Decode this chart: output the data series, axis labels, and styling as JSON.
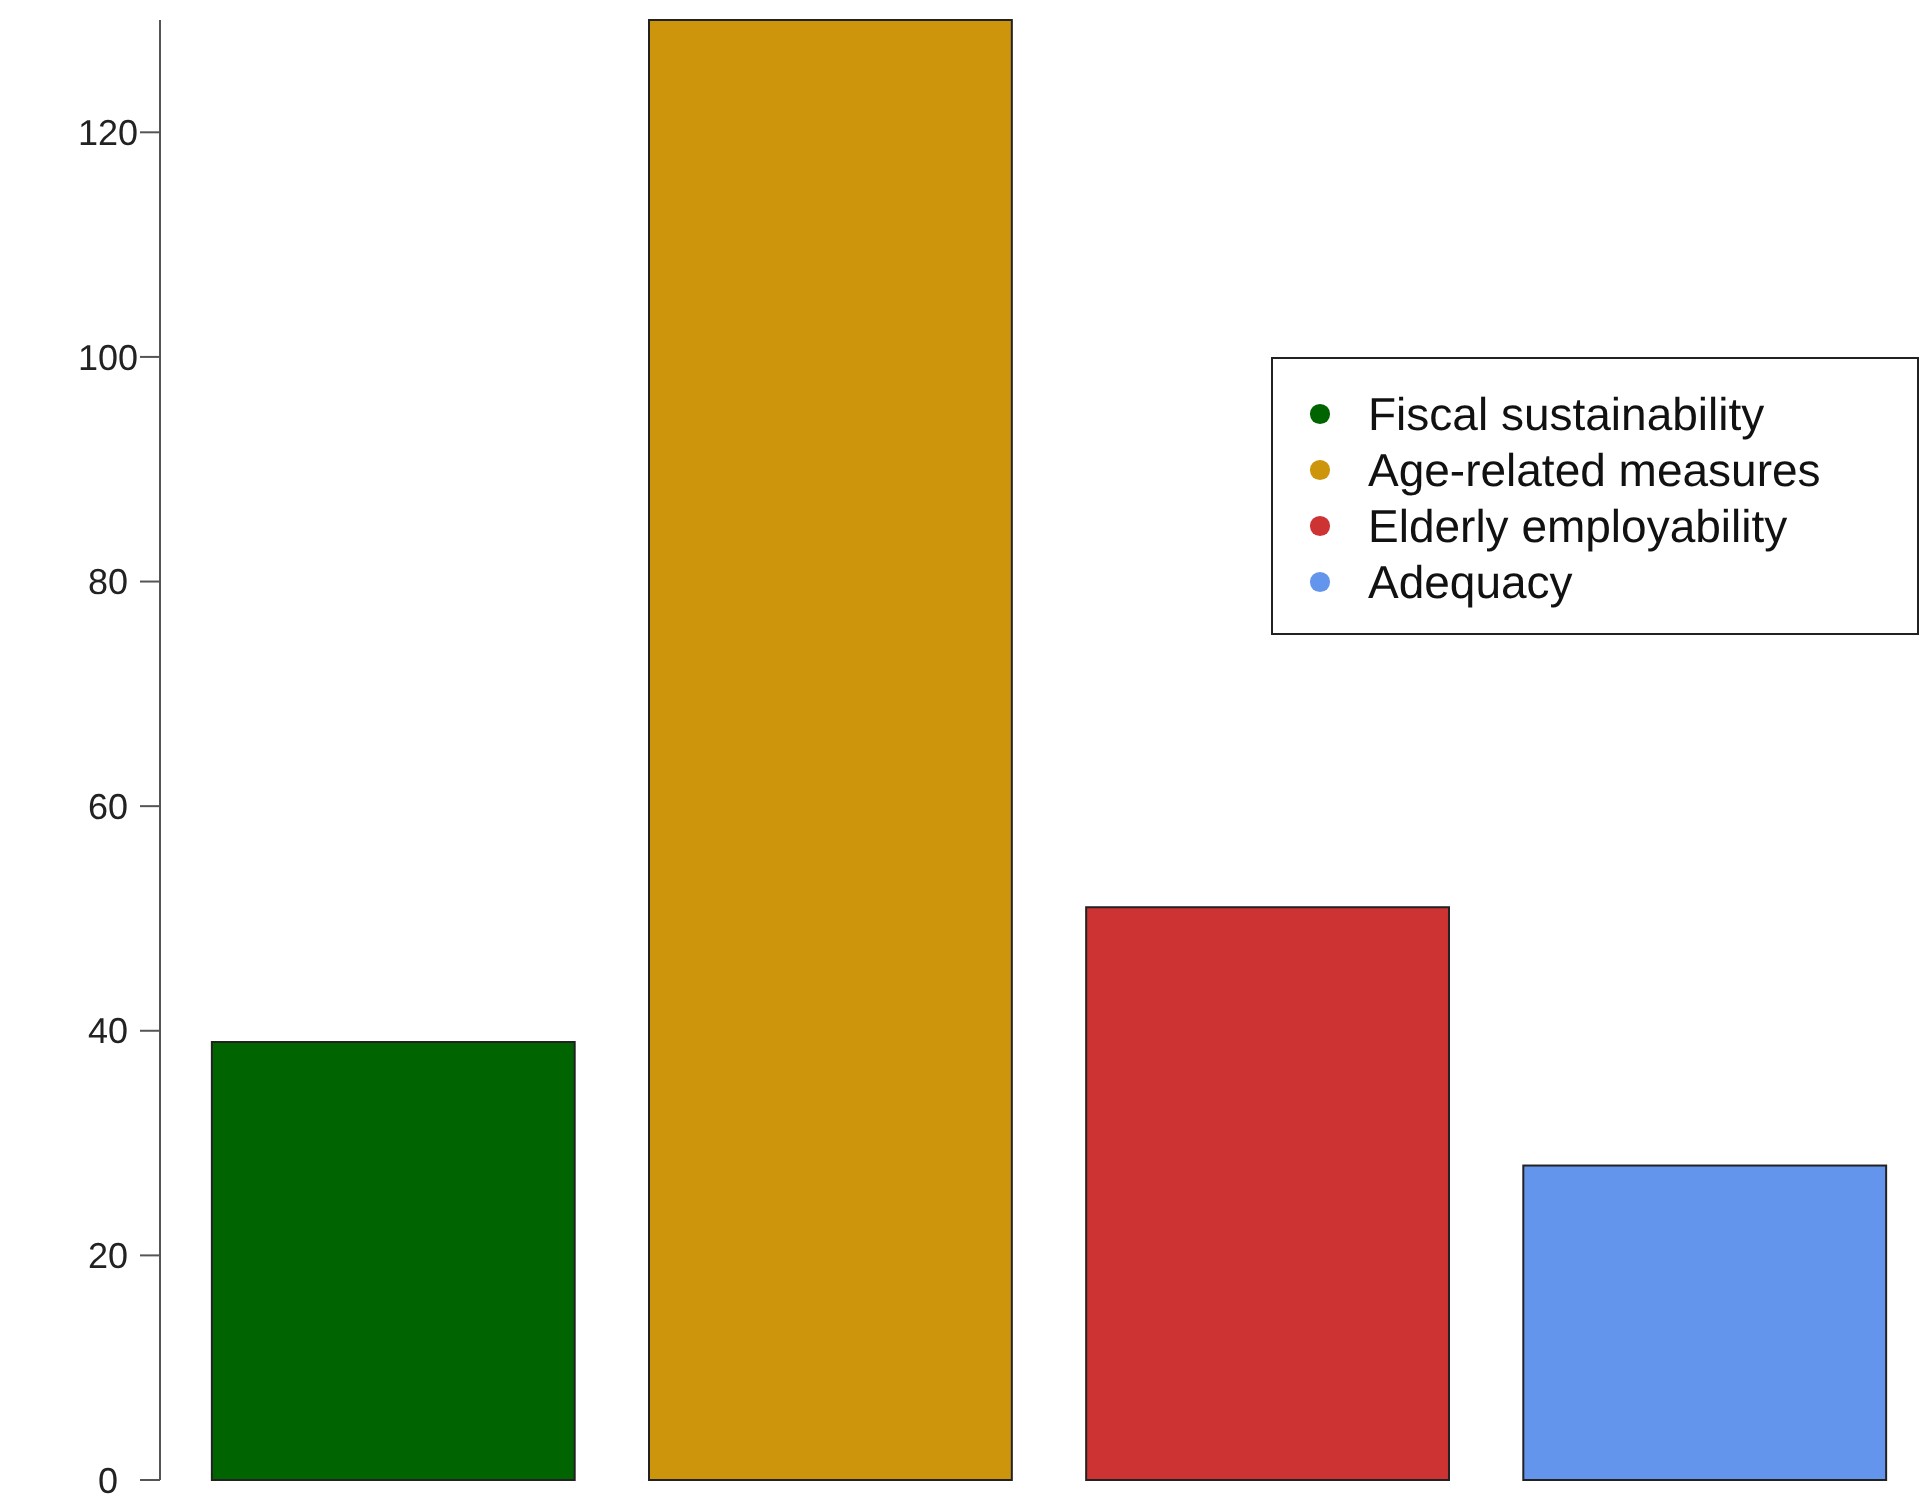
{
  "chart_data": {
    "type": "bar",
    "stacked": true,
    "categories": [
      null,
      null,
      null,
      null
    ],
    "series": [
      {
        "name": "Fiscal sustainability",
        "color": "#006400",
        "values": [
          39,
          null,
          null,
          null
        ]
      },
      {
        "name": "Age-related measures",
        "color": "#cd950c",
        "values": [
          null,
          130,
          null,
          null
        ]
      },
      {
        "name": "Elderly employability",
        "color": "#cd3333",
        "values": [
          null,
          null,
          51,
          null
        ]
      },
      {
        "name": "Adequacy",
        "color": "#6495ed",
        "values": [
          null,
          null,
          null,
          28
        ]
      }
    ],
    "ylim": [
      0,
      130
    ],
    "yticks": [
      0,
      20,
      40,
      60,
      80,
      100,
      120
    ],
    "tick_labels": "y",
    "grid": false,
    "legend": "top right",
    "marker": "circle"
  }
}
